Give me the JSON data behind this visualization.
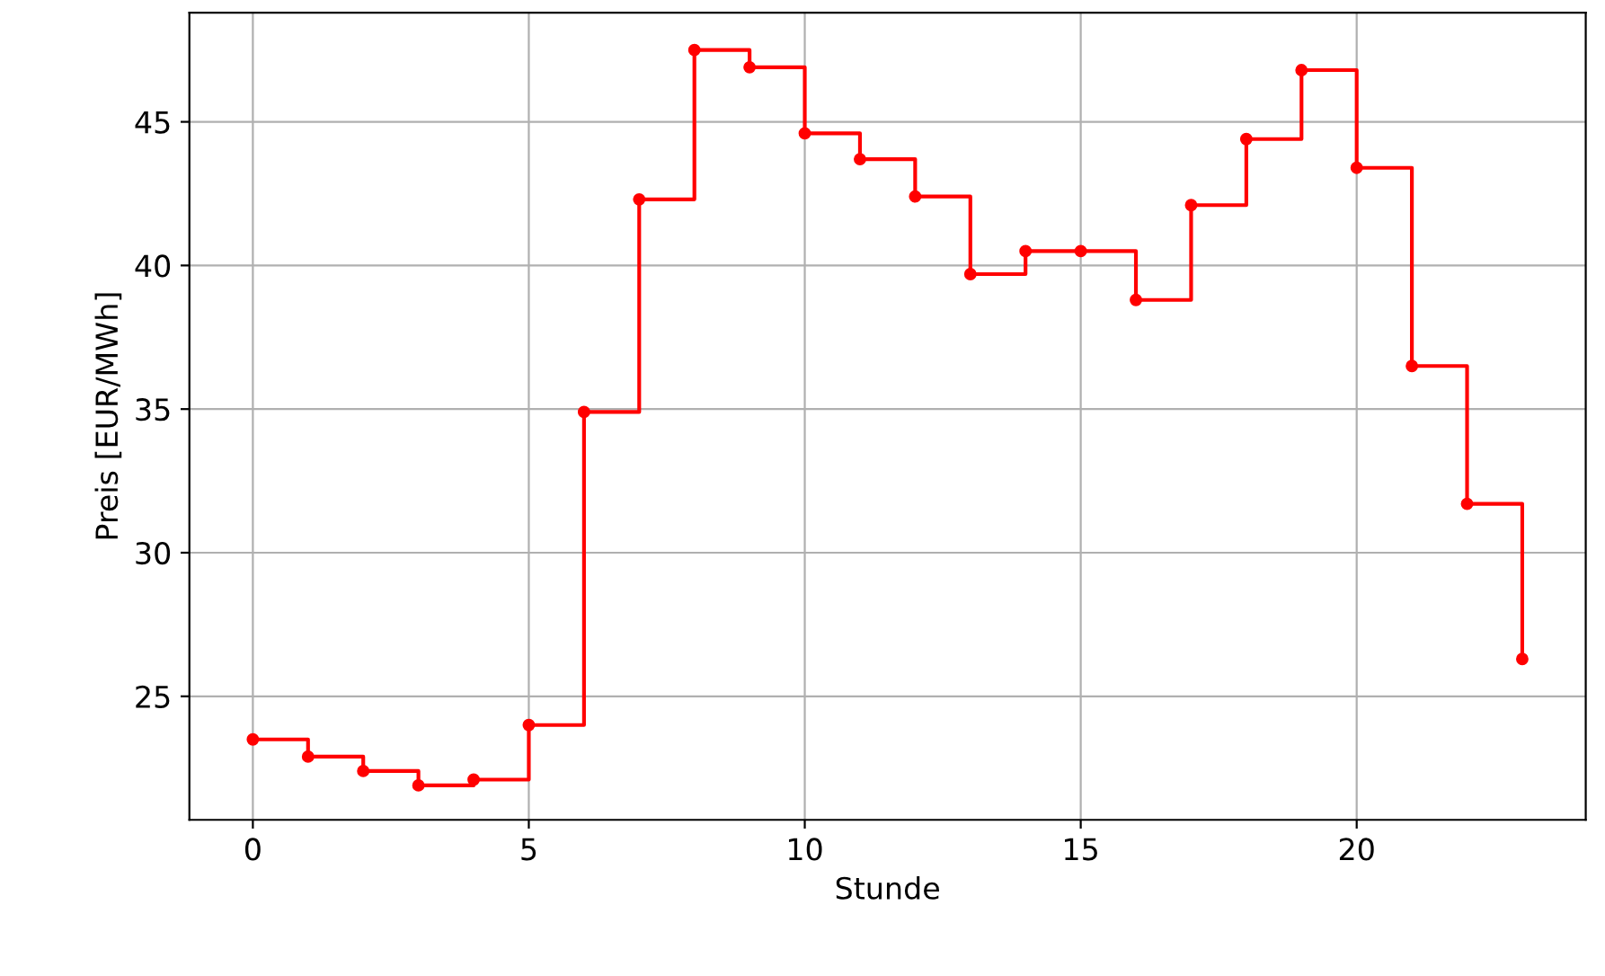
{
  "chart_data": {
    "type": "step",
    "xlabel": "Stunde",
    "ylabel": "Preis [EUR/MWh]",
    "x": [
      0,
      1,
      2,
      3,
      4,
      5,
      6,
      7,
      8,
      9,
      10,
      11,
      12,
      13,
      14,
      15,
      16,
      17,
      18,
      19,
      20,
      21,
      22,
      23
    ],
    "series": [
      {
        "color": "#ff0000",
        "values": [
          23.5,
          22.9,
          22.4,
          21.9,
          22.1,
          24.0,
          34.9,
          42.3,
          47.5,
          46.9,
          44.6,
          43.7,
          42.4,
          39.7,
          40.5,
          40.5,
          38.8,
          42.1,
          44.4,
          46.8,
          43.4,
          36.5,
          31.7,
          26.3
        ]
      }
    ],
    "xlim": [
      -1.15,
      24.15
    ],
    "xticks": [
      0,
      5,
      10,
      15,
      20
    ],
    "ylim": [
      20.7,
      48.8
    ],
    "yticks": [
      25,
      30,
      35,
      40,
      45
    ],
    "grid": true,
    "marker": "circle",
    "line_style": "solid"
  }
}
